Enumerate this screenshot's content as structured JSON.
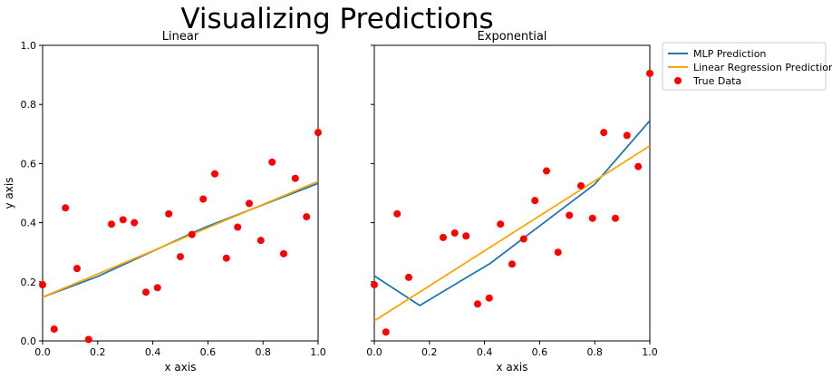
{
  "suptitle": "Visualizing Predictions",
  "legend": {
    "placement": "outside-right-top",
    "entries": [
      {
        "label": "MLP Prediction",
        "color": "#1f77b4",
        "kind": "line"
      },
      {
        "label": "Linear Regression Prediction",
        "color": "#ffa500",
        "kind": "line"
      },
      {
        "label": "True Data",
        "color": "#ff0000",
        "kind": "marker"
      }
    ]
  },
  "chart_data": [
    {
      "type": "line",
      "title": "Linear",
      "xlabel": "x axis",
      "ylabel": "y axis",
      "xlim": [
        0.0,
        1.0
      ],
      "ylim": [
        0.0,
        1.0
      ],
      "xticks": [
        "0.0",
        "0.2",
        "0.4",
        "0.6",
        "0.8",
        "1.0"
      ],
      "yticks": [
        "0.0",
        "0.2",
        "0.4",
        "0.6",
        "0.8",
        "1.0"
      ],
      "show_yticklabels": true,
      "grid": false,
      "true_data": {
        "x": [
          0.0,
          0.042,
          0.083,
          0.125,
          0.167,
          0.25,
          0.292,
          0.333,
          0.375,
          0.417,
          0.458,
          0.5,
          0.542,
          0.583,
          0.625,
          0.667,
          0.708,
          0.75,
          0.792,
          0.833,
          0.875,
          0.917,
          0.958,
          1.0
        ],
        "y": [
          0.19,
          0.04,
          0.45,
          0.245,
          0.005,
          0.395,
          0.41,
          0.4,
          0.165,
          0.18,
          0.43,
          0.285,
          0.36,
          0.48,
          0.565,
          0.28,
          0.385,
          0.465,
          0.34,
          0.605,
          0.295,
          0.55,
          0.42,
          0.705
        ]
      },
      "series": [
        {
          "name": "MLP Prediction",
          "x": [
            0.0,
            0.2,
            0.55,
            0.6,
            1.0
          ],
          "y": [
            0.148,
            0.218,
            0.368,
            0.388,
            0.533
          ]
        },
        {
          "name": "Linear Regression Prediction",
          "x": [
            0.0,
            1.0
          ],
          "y": [
            0.148,
            0.54
          ]
        }
      ]
    },
    {
      "type": "line",
      "title": "Exponential",
      "xlabel": "x axis",
      "ylabel": "",
      "xlim": [
        0.0,
        1.0
      ],
      "ylim": [
        0.0,
        1.0
      ],
      "xticks": [
        "0.0",
        "0.2",
        "0.4",
        "0.6",
        "0.8",
        "1.0"
      ],
      "yticks": [
        "0.0",
        "0.2",
        "0.4",
        "0.6",
        "0.8",
        "1.0"
      ],
      "show_yticklabels": false,
      "grid": false,
      "true_data": {
        "x": [
          0.0,
          0.042,
          0.083,
          0.125,
          0.25,
          0.292,
          0.333,
          0.375,
          0.417,
          0.458,
          0.5,
          0.542,
          0.583,
          0.625,
          0.667,
          0.708,
          0.75,
          0.792,
          0.833,
          0.875,
          0.917,
          0.958,
          1.0
        ],
        "y": [
          0.19,
          0.03,
          0.43,
          0.215,
          0.35,
          0.365,
          0.355,
          0.125,
          0.145,
          0.395,
          0.26,
          0.345,
          0.475,
          0.575,
          0.3,
          0.425,
          0.525,
          0.415,
          0.705,
          0.415,
          0.695,
          0.59,
          0.905
        ]
      },
      "series": [
        {
          "name": "MLP Prediction",
          "x": [
            0.0,
            0.165,
            0.42,
            0.8,
            1.0
          ],
          "y": [
            0.22,
            0.12,
            0.262,
            0.53,
            0.745
          ]
        },
        {
          "name": "Linear Regression Prediction",
          "x": [
            0.0,
            1.0
          ],
          "y": [
            0.068,
            0.66
          ]
        }
      ]
    }
  ]
}
